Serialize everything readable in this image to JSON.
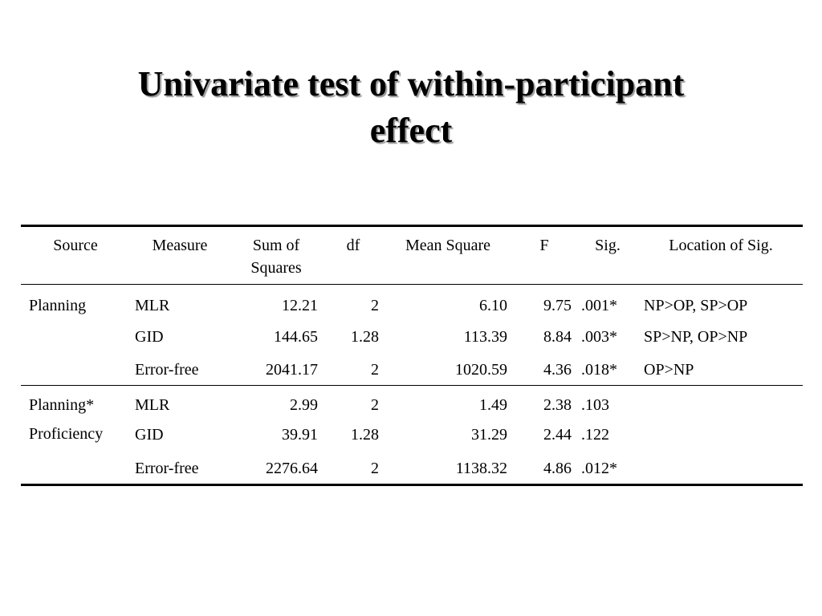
{
  "title": {
    "line1": "Univariate test of within-participant",
    "line2": "effect"
  },
  "table": {
    "headers": {
      "source": "Source",
      "measure": "Measure",
      "ss": "Sum of Squares",
      "df": "df",
      "ms": "Mean Square",
      "f": "F",
      "sig": "Sig.",
      "loc": "Location of Sig."
    },
    "groups": [
      {
        "source": "Planning",
        "rows": [
          {
            "measure": "MLR",
            "ss": "12.21",
            "df": "2",
            "ms": "6.10",
            "f": "9.75",
            "sig": ".001*",
            "loc": "NP>OP, SP>OP"
          },
          {
            "measure": "GID",
            "ss": "144.65",
            "df": "1.28",
            "ms": "113.39",
            "f": "8.84",
            "sig": ".003*",
            "loc": "SP>NP, OP>NP"
          },
          {
            "measure": "Error-free",
            "ss": "2041.17",
            "df": "2",
            "ms": "1020.59",
            "f": "4.36",
            "sig": ".018*",
            "loc": "OP>NP"
          }
        ]
      },
      {
        "source_line1": "Planning*",
        "source_line2": "Proficiency",
        "rows": [
          {
            "measure": "MLR",
            "ss": "2.99",
            "df": "2",
            "ms": "1.49",
            "f": "2.38",
            "sig": ".103",
            "loc": ""
          },
          {
            "measure": "GID",
            "ss": "39.91",
            "df": "1.28",
            "ms": "31.29",
            "f": "2.44",
            "sig": ".122",
            "loc": ""
          },
          {
            "measure": "Error-free",
            "ss": "2276.64",
            "df": "2",
            "ms": "1138.32",
            "f": "4.86",
            "sig": ".012*",
            "loc": ""
          }
        ]
      }
    ]
  }
}
